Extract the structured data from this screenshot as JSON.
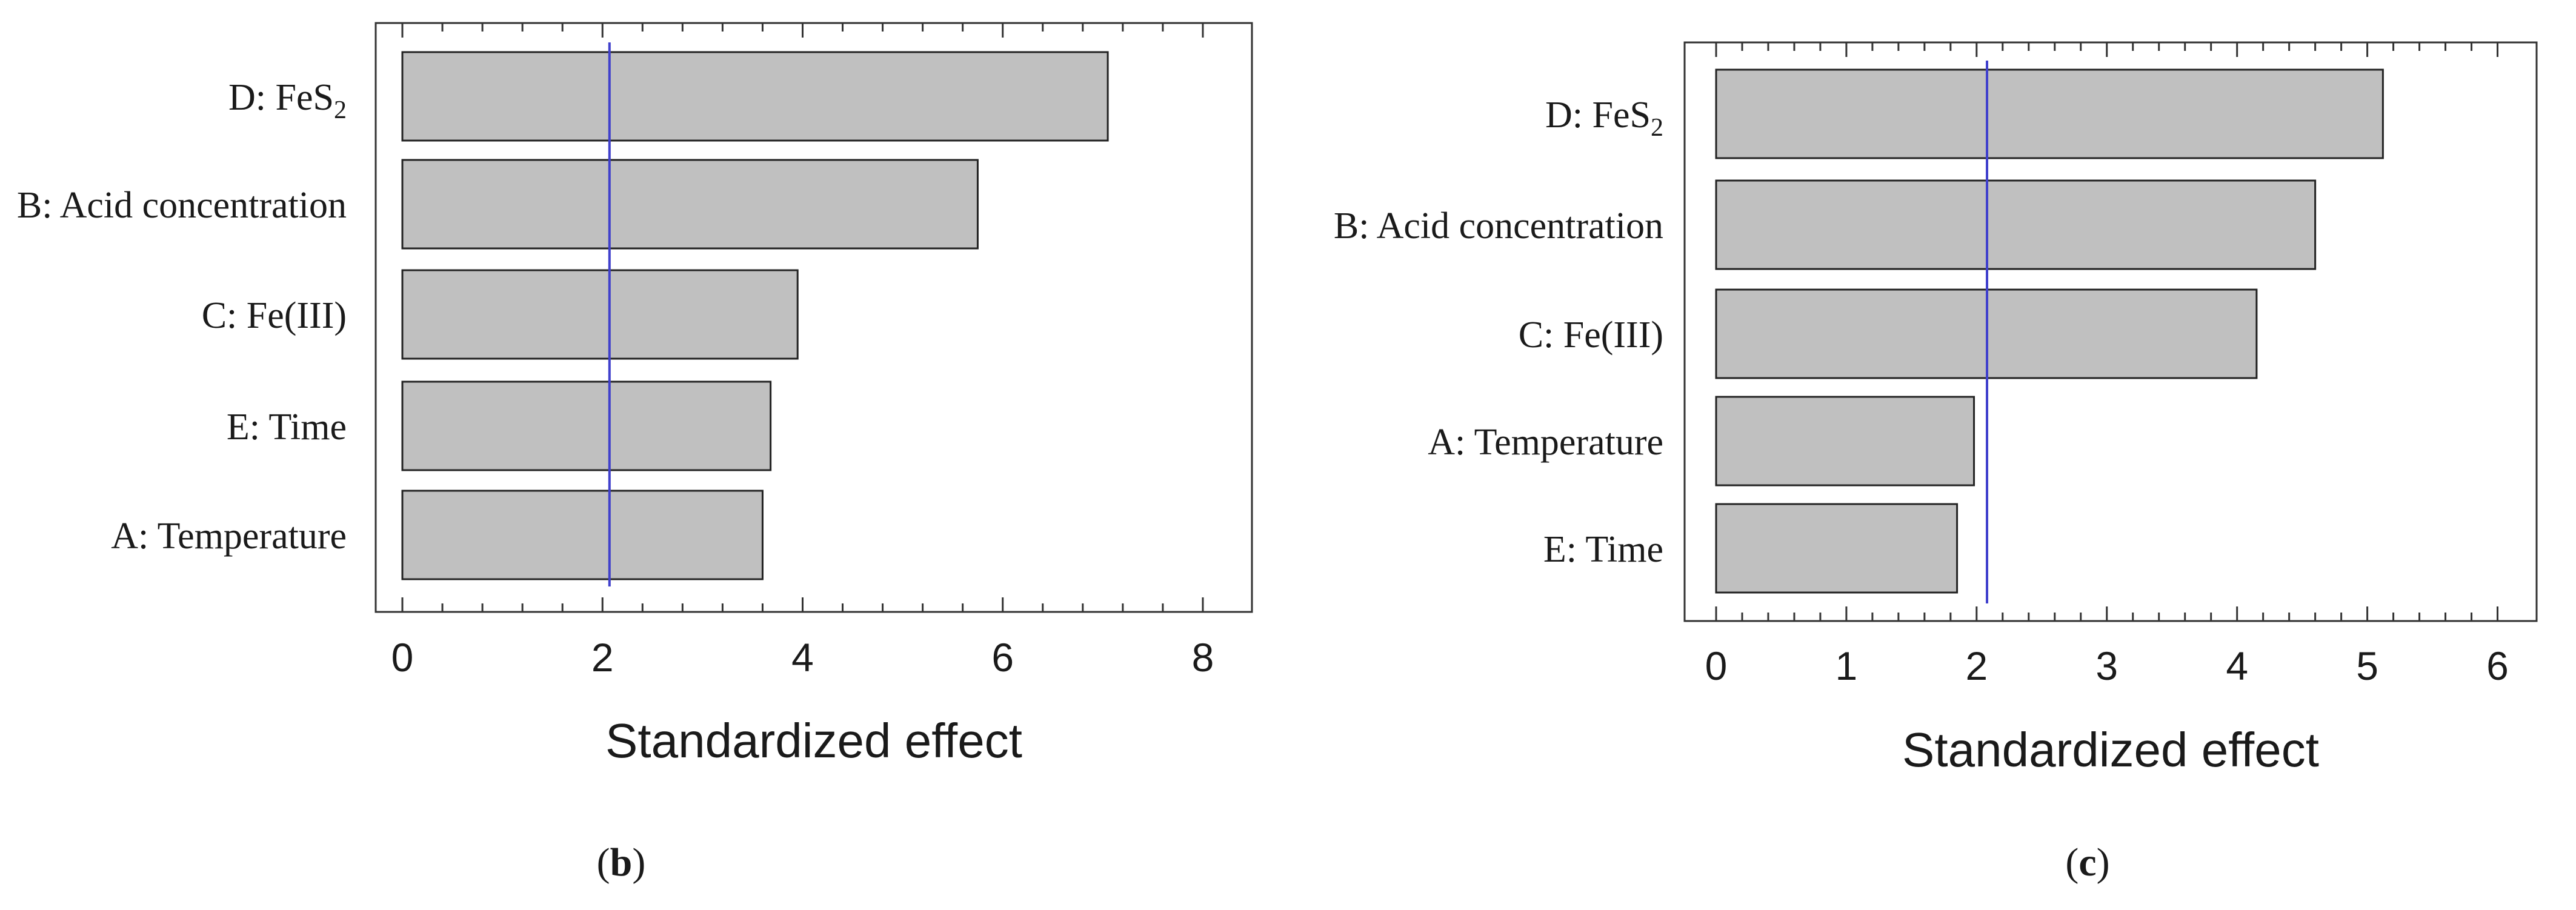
{
  "charts": [
    {
      "panel_label": "(b)",
      "panel_letter": "b",
      "chart_data": {
        "type": "bar",
        "orientation": "horizontal",
        "categories": [
          "D: FeS2",
          "B: Acid concentration",
          "C: Fe(III)",
          "E: Time",
          "A: Temperature"
        ],
        "values": [
          7.05,
          5.75,
          3.95,
          3.68,
          3.6
        ],
        "xlabel": "Standardized effect",
        "xlim": [
          0,
          8.2
        ],
        "xticks": [
          0,
          2,
          4,
          6,
          8
        ],
        "reference_line": 2.07,
        "bar_color": "#c0c0c0",
        "line_color": "#4040cc",
        "grid": false
      }
    },
    {
      "panel_label": "(c)",
      "panel_letter": "c",
      "chart_data": {
        "type": "bar",
        "orientation": "horizontal",
        "categories": [
          "D: FeS2",
          "B: Acid concentration",
          "C: Fe(III)",
          "A: Temperature",
          "E: Time"
        ],
        "values": [
          5.12,
          4.6,
          4.15,
          1.98,
          1.85
        ],
        "xlabel": "Standardized effect",
        "xlim": [
          0,
          6.1
        ],
        "xticks": [
          0,
          1,
          2,
          3,
          4,
          5,
          6
        ],
        "reference_line": 2.08,
        "bar_color": "#c0c0c0",
        "line_color": "#4040cc",
        "grid": false
      }
    }
  ]
}
